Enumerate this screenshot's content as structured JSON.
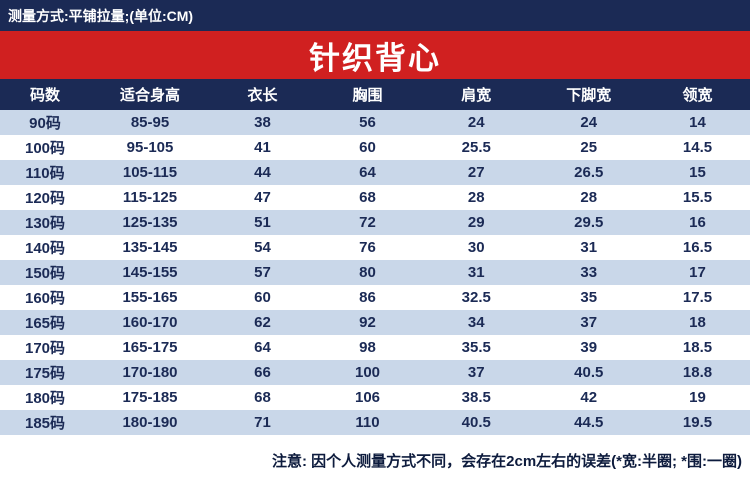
{
  "header": {
    "measure_note": "测量方式:平铺拉量;(单位:CM)",
    "title": "针织背心"
  },
  "table": {
    "columns": [
      "码数",
      "适合身高",
      "衣长",
      "胸围",
      "肩宽",
      "下脚宽",
      "领宽"
    ],
    "rows": [
      [
        "90码",
        "85-95",
        "38",
        "56",
        "24",
        "24",
        "14"
      ],
      [
        "100码",
        "95-105",
        "41",
        "60",
        "25.5",
        "25",
        "14.5"
      ],
      [
        "110码",
        "105-115",
        "44",
        "64",
        "27",
        "26.5",
        "15"
      ],
      [
        "120码",
        "115-125",
        "47",
        "68",
        "28",
        "28",
        "15.5"
      ],
      [
        "130码",
        "125-135",
        "51",
        "72",
        "29",
        "29.5",
        "16"
      ],
      [
        "140码",
        "135-145",
        "54",
        "76",
        "30",
        "31",
        "16.5"
      ],
      [
        "150码",
        "145-155",
        "57",
        "80",
        "31",
        "33",
        "17"
      ],
      [
        "160码",
        "155-165",
        "60",
        "86",
        "32.5",
        "35",
        "17.5"
      ],
      [
        "165码",
        "160-170",
        "62",
        "92",
        "34",
        "37",
        "18"
      ],
      [
        "170码",
        "165-175",
        "64",
        "98",
        "35.5",
        "39",
        "18.5"
      ],
      [
        "175码",
        "170-180",
        "66",
        "100",
        "37",
        "40.5",
        "18.8"
      ],
      [
        "180码",
        "175-185",
        "68",
        "106",
        "38.5",
        "42",
        "19"
      ],
      [
        "185码",
        "180-190",
        "71",
        "110",
        "40.5",
        "44.5",
        "19.5"
      ]
    ]
  },
  "footer": {
    "note": "注意: 因个人测量方式不同，会存在2cm左右的误差(*宽:半圈; *围:一圈)"
  },
  "colors": {
    "navy": "#1b2a55",
    "red": "#d02020",
    "row_alt": "#c9d7e9",
    "white": "#ffffff"
  }
}
